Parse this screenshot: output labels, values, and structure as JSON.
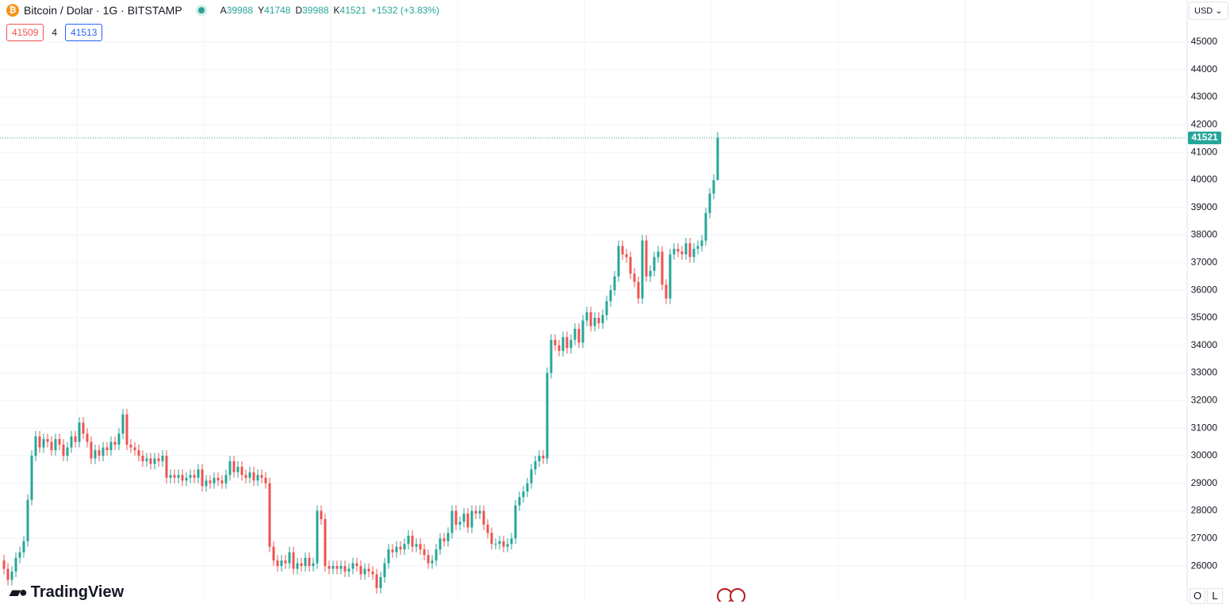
{
  "chart_data": {
    "type": "candlestick",
    "title": "Bitcoin / Dolar · 1G · BITSTAMP",
    "ohlc_labels": {
      "open": "A",
      "high": "Y",
      "low": "D",
      "close": "K"
    },
    "change_label": "+1532 (+3.83%)",
    "order_panel": {
      "sell": 41509,
      "spread": 4,
      "buy": 41513
    },
    "currency": "USD",
    "brand": "TradingView",
    "buttons": [
      "O",
      "L"
    ],
    "up_color": "#26a69a",
    "down_color": "#ef5350",
    "ylim": [
      24710,
      46520
    ],
    "yticks": [
      26000,
      27000,
      28000,
      29000,
      30000,
      31000,
      32000,
      33000,
      34000,
      35000,
      36000,
      37000,
      38000,
      39000,
      40000,
      41000,
      42000,
      43000,
      44000,
      45000
    ],
    "grid": true,
    "open": [
      26200,
      25900,
      25500,
      25800,
      26300,
      26500,
      26900,
      28400,
      30000,
      30700,
      30300,
      30600,
      30500,
      30200,
      30600,
      30400,
      30000,
      30300,
      30700,
      30500,
      31200,
      30800,
      30500,
      29900,
      30200,
      30000,
      30300,
      30200,
      30500,
      30400,
      30800,
      31500,
      30400,
      30300,
      30200,
      30000,
      29800,
      29900,
      29700,
      29900,
      29800,
      30000,
      29200,
      29300,
      29200,
      29300,
      29100,
      29200,
      29300,
      29200,
      29500,
      28900,
      29100,
      29000,
      29200,
      29100,
      29000,
      29300,
      29800,
      29400,
      29600,
      29300,
      29200,
      29400,
      29100,
      29300,
      29200,
      29000,
      26700,
      26200,
      26000,
      26200,
      26100,
      26500,
      25900,
      26100,
      26000,
      26300,
      26000,
      26100,
      28000,
      27700,
      26000,
      25900,
      26000,
      25900,
      26000,
      25800,
      25900,
      26100,
      26000,
      25700,
      25900,
      25800,
      25700,
      25200,
      25600,
      26100,
      26600,
      26500,
      26700,
      26600,
      26800,
      27100,
      26700,
      26800,
      26600,
      26400,
      26100,
      26200,
      26600,
      27000,
      26900,
      27200,
      28000,
      27500,
      27600,
      27900,
      27400,
      28000,
      27900,
      28000,
      27500,
      27200,
      26800,
      26800,
      26900,
      26700,
      26800,
      27000,
      28200,
      28500,
      28700,
      29000,
      29500,
      29800,
      30000,
      29900,
      33000,
      34200,
      34000,
      33800,
      34300,
      33900,
      34200,
      34600,
      34100,
      34900,
      35200,
      34700,
      35000,
      34800,
      35100,
      35600,
      36000,
      36500,
      37600,
      37300,
      37200,
      36600,
      36300,
      35700,
      37800,
      36500,
      36700,
      37200,
      37400,
      36200,
      35700,
      37300,
      37500,
      37400,
      37300,
      37700,
      37200,
      37500,
      37600,
      37800,
      38800,
      39500,
      39988
    ],
    "high": [
      26400,
      26100,
      26000,
      26500,
      26700,
      27100,
      28600,
      30200,
      30900,
      30900,
      30800,
      30800,
      30700,
      30800,
      30800,
      30600,
      30500,
      30900,
      30900,
      31400,
      31400,
      31000,
      30700,
      30400,
      30400,
      30500,
      30500,
      30700,
      30700,
      31000,
      31700,
      31700,
      30600,
      30500,
      30400,
      30200,
      30100,
      30100,
      30100,
      30100,
      30200,
      30200,
      29500,
      29500,
      29500,
      29500,
      29400,
      29500,
      29500,
      29700,
      29700,
      29300,
      29300,
      29400,
      29400,
      29300,
      29500,
      30000,
      30000,
      29800,
      29800,
      29500,
      29600,
      29600,
      29500,
      29500,
      29400,
      29200,
      26900,
      26400,
      26400,
      26400,
      26700,
      26700,
      26300,
      26300,
      26500,
      26500,
      26300,
      28200,
      28200,
      27900,
      26200,
      26200,
      26200,
      26200,
      26200,
      26100,
      26300,
      26300,
      26200,
      26100,
      26100,
      26000,
      25900,
      25800,
      26300,
      26800,
      26800,
      26900,
      26900,
      27000,
      27300,
      27300,
      27000,
      27000,
      26800,
      26600,
      26400,
      26800,
      27200,
      27200,
      27400,
      28200,
      28200,
      27800,
      28100,
      28100,
      28200,
      28200,
      28200,
      28200,
      27700,
      27400,
      27000,
      27100,
      27100,
      27000,
      27200,
      28400,
      28700,
      28900,
      29200,
      29700,
      30000,
      30200,
      30200,
      33200,
      34400,
      34400,
      34200,
      34500,
      34500,
      34400,
      34800,
      34800,
      35100,
      35400,
      35400,
      35200,
      35200,
      35300,
      35800,
      36200,
      36700,
      37800,
      37800,
      37500,
      37400,
      36800,
      36500,
      38000,
      38000,
      36900,
      37400,
      37600,
      37600,
      36400,
      37500,
      37700,
      37700,
      37600,
      37900,
      37900,
      37700,
      37800,
      38000,
      39000,
      39700,
      40200,
      41748
    ],
    "low": [
      25700,
      25300,
      25300,
      25600,
      26100,
      26300,
      26700,
      28200,
      29800,
      30100,
      30100,
      30300,
      30000,
      30000,
      30200,
      29800,
      29800,
      30100,
      30300,
      30300,
      30600,
      30300,
      29700,
      29700,
      29800,
      29800,
      30000,
      30000,
      30200,
      30200,
      30600,
      30200,
      30100,
      30000,
      29800,
      29600,
      29600,
      29500,
      29500,
      29600,
      29600,
      29000,
      29000,
      29000,
      29000,
      28900,
      28900,
      29000,
      29000,
      29000,
      28700,
      28700,
      28800,
      28800,
      28900,
      28800,
      28800,
      29100,
      29200,
      29200,
      29100,
      29000,
      29000,
      28900,
      28900,
      29000,
      28800,
      26500,
      26000,
      25800,
      25800,
      25900,
      25900,
      25700,
      25700,
      25800,
      25800,
      25800,
      25800,
      25900,
      27500,
      25800,
      25700,
      25700,
      25700,
      25700,
      25600,
      25600,
      25700,
      25800,
      25500,
      25500,
      25600,
      25500,
      25000,
      25000,
      25400,
      25900,
      26300,
      26300,
      26400,
      26400,
      26600,
      26500,
      26500,
      26400,
      26200,
      25900,
      25900,
      26000,
      26400,
      26700,
      26700,
      27000,
      27300,
      27300,
      27400,
      27200,
      27200,
      27700,
      27700,
      27300,
      27000,
      26600,
      26600,
      26600,
      26500,
      26500,
      26600,
      26800,
      28000,
      28300,
      28500,
      28800,
      29300,
      29600,
      29700,
      29700,
      32800,
      33800,
      33600,
      33600,
      33700,
      33700,
      34000,
      33900,
      33900,
      34700,
      34500,
      34500,
      34600,
      34600,
      34900,
      35400,
      35800,
      36300,
      37100,
      37000,
      36400,
      36100,
      35500,
      35500,
      36300,
      36300,
      36500,
      37000,
      36000,
      35500,
      35500,
      37100,
      37200,
      37100,
      37100,
      37000,
      37000,
      37300,
      37400,
      37600,
      38600,
      39300,
      39988
    ],
    "close": [
      25900,
      25500,
      25800,
      26300,
      26500,
      26900,
      28400,
      30000,
      30700,
      30300,
      30600,
      30500,
      30200,
      30600,
      30400,
      30000,
      30300,
      30700,
      30500,
      31200,
      30800,
      30500,
      29900,
      30200,
      30000,
      30300,
      30200,
      30500,
      30400,
      30800,
      31500,
      30400,
      30300,
      30200,
      30000,
      29800,
      29900,
      29700,
      29900,
      29800,
      30000,
      29200,
      29300,
      29200,
      29300,
      29100,
      29200,
      29300,
      29200,
      29500,
      28900,
      29100,
      29000,
      29200,
      29100,
      29000,
      29300,
      29800,
      29400,
      29600,
      29300,
      29200,
      29400,
      29100,
      29300,
      29200,
      29000,
      26700,
      26200,
      26000,
      26200,
      26100,
      26500,
      25900,
      26100,
      26000,
      26300,
      26000,
      26100,
      28000,
      27700,
      26000,
      25900,
      26000,
      25900,
      26000,
      25800,
      25900,
      26100,
      26000,
      25700,
      25900,
      25800,
      25700,
      25200,
      25600,
      26100,
      26600,
      26500,
      26700,
      26600,
      26800,
      27100,
      26700,
      26800,
      26600,
      26400,
      26100,
      26200,
      26600,
      27000,
      26900,
      27200,
      28000,
      27500,
      27600,
      27900,
      27400,
      28000,
      27900,
      28000,
      27500,
      27200,
      26800,
      26800,
      26900,
      26700,
      26800,
      27000,
      28200,
      28500,
      28700,
      29000,
      29500,
      29800,
      30000,
      29900,
      33000,
      34200,
      34000,
      33800,
      34300,
      33900,
      34200,
      34600,
      34100,
      34900,
      35200,
      34700,
      35000,
      34800,
      35100,
      35600,
      36000,
      36500,
      37600,
      37300,
      37200,
      36600,
      36300,
      35700,
      37800,
      36500,
      36700,
      37200,
      37400,
      36200,
      35700,
      37300,
      37500,
      37400,
      37300,
      37700,
      37200,
      37500,
      37600,
      37800,
      38800,
      39500,
      39988,
      41521
    ]
  }
}
